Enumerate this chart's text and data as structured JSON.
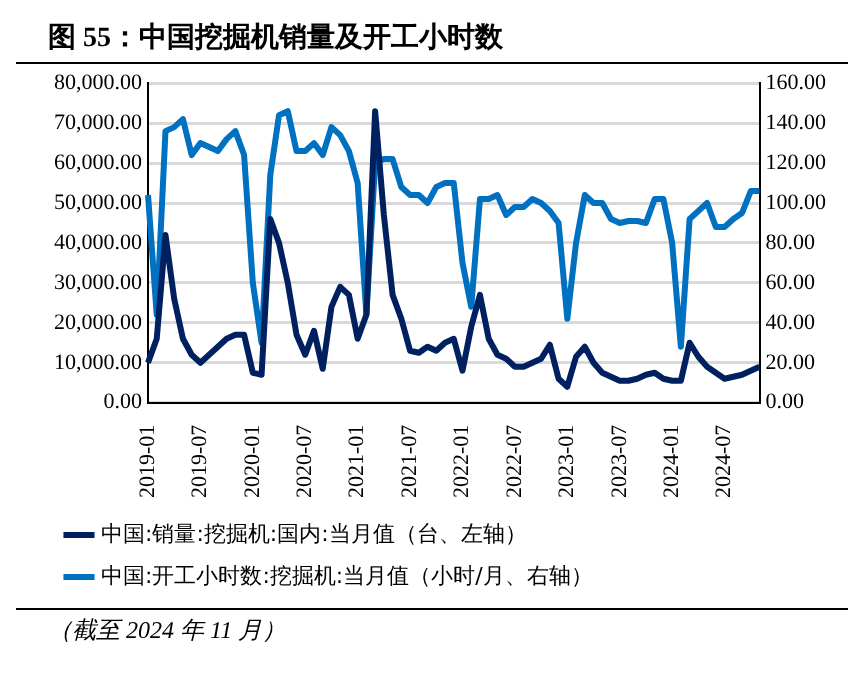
{
  "chart_data": {
    "type": "line",
    "title": "图 55：中国挖掘机销量及开工小时数",
    "annotations": [
      "（截至 2024 年 11 月）"
    ],
    "categories": [
      "2019-01",
      null,
      null,
      null,
      null,
      null,
      "2019-07",
      null,
      null,
      null,
      null,
      null,
      "2020-01",
      null,
      null,
      null,
      null,
      null,
      "2020-07",
      null,
      null,
      null,
      null,
      null,
      "2021-01",
      null,
      null,
      null,
      null,
      null,
      "2021-07",
      null,
      null,
      null,
      null,
      null,
      "2022-01",
      null,
      null,
      null,
      null,
      null,
      "2022-07",
      null,
      null,
      null,
      null,
      null,
      "2023-01",
      null,
      null,
      null,
      null,
      null,
      "2023-07",
      null,
      null,
      null,
      null,
      null,
      "2024-01",
      null,
      null,
      null,
      null,
      null,
      "2024-07",
      null,
      null,
      null,
      null
    ],
    "series": [
      {
        "name": "中国:销量:挖掘机:国内:当月值（台、左轴）",
        "color": "#002060",
        "values": [
          10000,
          16000,
          42000,
          26000,
          16000,
          12000,
          10000,
          12000,
          14000,
          16000,
          17000,
          17000,
          7500,
          7000,
          46000,
          40000,
          30000,
          17000,
          12000,
          18000,
          8500,
          24000,
          29000,
          27000,
          16000,
          22000,
          73000,
          47000,
          27000,
          21000,
          13000,
          12500,
          14000,
          13000,
          15000,
          16000,
          8000,
          19000,
          27000,
          16000,
          12000,
          11000,
          9000,
          9000,
          10000,
          11000,
          14500,
          6000,
          4000,
          11500,
          14000,
          10000,
          7500,
          6500,
          5500,
          5500,
          6000,
          7000,
          7500,
          6000,
          5500,
          5500,
          15000,
          11500,
          9000,
          7500,
          6000,
          6500,
          7000,
          8000,
          9000
        ]
      },
      {
        "name": "中国:开工小时数:挖掘机:当月值（小时/月、右轴）",
        "color": "#0070c0",
        "axis": "y2",
        "values": [
          104,
          44,
          136,
          138,
          142,
          124,
          130,
          128,
          126,
          132,
          136,
          124,
          60,
          30,
          114,
          144,
          146,
          126,
          126,
          130,
          124,
          138,
          134,
          126,
          110,
          44,
          120,
          122,
          122,
          108,
          104,
          104,
          100,
          108,
          110,
          110,
          70,
          48,
          102,
          102,
          104,
          94,
          98,
          98,
          102,
          100,
          96,
          90,
          42,
          80,
          104,
          100,
          100,
          92,
          90,
          91,
          91,
          90,
          102,
          102,
          80,
          28,
          92,
          96,
          100,
          88,
          88,
          92,
          95,
          106,
          106
        ]
      }
    ],
    "ylim": [
      0,
      80000
    ],
    "yticks": [
      {
        "value": 0,
        "label": "0.00"
      },
      {
        "value": 10000,
        "label": "10,000.00"
      },
      {
        "value": 20000,
        "label": "20,000.00"
      },
      {
        "value": 30000,
        "label": "30,000.00"
      },
      {
        "value": 40000,
        "label": "40,000.00"
      },
      {
        "value": 50000,
        "label": "50,000.00"
      },
      {
        "value": 60000,
        "label": "60,000.00"
      },
      {
        "value": 70000,
        "label": "70,000.00"
      },
      {
        "value": 80000,
        "label": "80,000.00"
      }
    ],
    "y2lim": [
      0,
      160
    ],
    "y2ticks": [
      {
        "value": 0,
        "label": "0.00"
      },
      {
        "value": 20,
        "label": "20.00"
      },
      {
        "value": 40,
        "label": "40.00"
      },
      {
        "value": 60,
        "label": "60.00"
      },
      {
        "value": 80,
        "label": "80.00"
      },
      {
        "value": 100,
        "label": "100.00"
      },
      {
        "value": 120,
        "label": "120.00"
      },
      {
        "value": 140,
        "label": "140.00"
      },
      {
        "value": 160,
        "label": "160.00"
      }
    ],
    "grid": "y",
    "legend": "bottom",
    "marker": "none",
    "line_style": "solid"
  }
}
